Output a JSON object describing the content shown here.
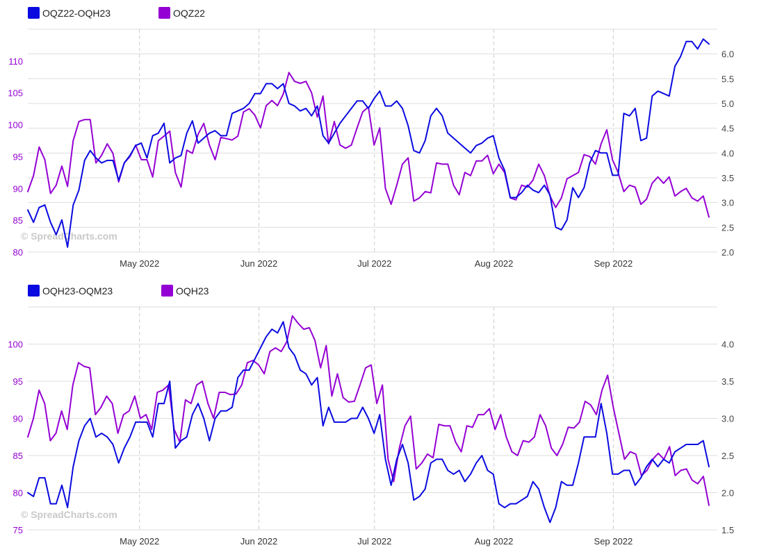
{
  "colors": {
    "spread": "#0a0ae0",
    "outright": "#9400d3",
    "left_axis_text": "#9400d3",
    "right_axis_text": "#444444",
    "grid": "#dddddd",
    "watermark": "#c9c9c9"
  },
  "watermark": "© SpreadCharts.com",
  "chart_data": [
    {
      "type": "line",
      "x_tick_labels": [
        "May 2022",
        "Jun 2022",
        "Jul 2022",
        "Aug 2022",
        "Sep 2022"
      ],
      "x_ticks": [
        "2022-05-01",
        "2022-06-01",
        "2022-07-01",
        "2022-08-01",
        "2022-09-01"
      ],
      "x_range": [
        "2022-04-02",
        "2022-09-28"
      ],
      "left_axis": {
        "ylim": [
          80,
          115
        ],
        "ticks": [
          80,
          85,
          90,
          95,
          100,
          105,
          110
        ]
      },
      "right_axis": {
        "ylim": [
          2.0,
          6.5
        ],
        "ticks": [
          "2.0",
          "2.5",
          "3.0",
          "3.5",
          "4.0",
          "4.5",
          "5.0",
          "5.5",
          "6.0"
        ]
      },
      "series": [
        {
          "name": "OQZ22-OQH23",
          "axis": "right",
          "color": "#0a0ae0",
          "values": [
            2.85,
            2.6,
            2.9,
            2.95,
            2.6,
            2.35,
            2.65,
            2.1,
            2.95,
            3.25,
            3.85,
            4.05,
            3.9,
            3.8,
            3.85,
            3.85,
            3.45,
            3.8,
            3.95,
            4.15,
            4.2,
            3.9,
            4.35,
            4.4,
            4.6,
            3.8,
            3.9,
            3.95,
            4.4,
            4.65,
            4.2,
            4.3,
            4.4,
            4.45,
            4.35,
            4.35,
            4.8,
            4.85,
            4.9,
            5.0,
            5.2,
            5.2,
            5.4,
            5.4,
            5.3,
            5.4,
            5.0,
            4.95,
            4.85,
            4.9,
            4.75,
            4.95,
            4.35,
            4.2,
            4.4,
            4.6,
            4.75,
            4.9,
            5.05,
            5.05,
            4.9,
            5.1,
            5.25,
            4.95,
            4.95,
            5.05,
            4.9,
            4.55,
            4.05,
            4.0,
            4.25,
            4.75,
            4.9,
            4.75,
            4.4,
            4.3,
            4.2,
            4.1,
            4.0,
            4.15,
            4.2,
            4.3,
            4.35,
            3.9,
            3.65,
            3.1,
            3.1,
            3.2,
            3.35,
            3.25,
            3.2,
            3.35,
            3.15,
            2.5,
            2.45,
            2.65,
            3.3,
            3.1,
            3.3,
            3.8,
            4.05,
            4.0,
            4.0,
            3.55,
            3.55,
            4.8,
            4.75,
            4.9,
            4.25,
            4.3,
            5.15,
            5.25,
            5.2,
            5.15,
            5.75,
            5.95,
            6.25,
            6.25,
            6.1,
            6.3,
            6.2
          ]
        },
        {
          "name": "OQZ22",
          "axis": "left",
          "color": "#9400d3",
          "values": [
            89.5,
            92.0,
            96.5,
            94.5,
            89.2,
            90.5,
            93.5,
            90.3,
            97.5,
            100.5,
            100.8,
            100.8,
            94.0,
            95.2,
            97.0,
            95.5,
            91.0,
            94.0,
            95.0,
            96.8,
            94.5,
            94.5,
            91.8,
            97.5,
            98.2,
            99.0,
            92.5,
            90.2,
            96.0,
            95.5,
            98.5,
            100.2,
            96.8,
            94.5,
            98.0,
            97.8,
            97.6,
            98.2,
            102.0,
            102.5,
            101.5,
            99.5,
            103.0,
            103.8,
            103.0,
            104.8,
            108.2,
            106.8,
            106.5,
            106.8,
            105.0,
            101.2,
            104.5,
            97.0,
            100.5,
            96.8,
            96.3,
            96.8,
            99.5,
            102.0,
            102.8,
            96.8,
            99.5,
            90.0,
            87.5,
            90.5,
            93.8,
            94.8,
            88.0,
            88.5,
            89.5,
            89.3,
            94.0,
            93.8,
            93.8,
            90.5,
            89.0,
            92.5,
            92.0,
            94.3,
            94.3,
            95.2,
            92.3,
            93.8,
            92.5,
            88.5,
            88.2,
            90.5,
            90.2,
            91.3,
            93.8,
            92.0,
            88.8,
            87.0,
            88.5,
            91.5,
            92.0,
            92.5,
            95.3,
            95.0,
            93.8,
            97.0,
            99.2,
            94.5,
            92.5,
            89.5,
            90.5,
            90.2,
            87.5,
            88.3,
            90.8,
            91.8,
            90.8,
            91.8,
            88.8,
            89.5,
            90.0,
            88.5,
            88.0,
            88.8,
            85.5
          ]
        }
      ]
    },
    {
      "type": "line",
      "x_tick_labels": [
        "May 2022",
        "Jun 2022",
        "Jul 2022",
        "Aug 2022",
        "Sep 2022"
      ],
      "x_ticks": [
        "2022-05-01",
        "2022-06-01",
        "2022-07-01",
        "2022-08-01",
        "2022-09-01"
      ],
      "x_range": [
        "2022-04-02",
        "2022-09-28"
      ],
      "left_axis": {
        "ylim": [
          75,
          105
        ],
        "ticks": [
          75,
          80,
          85,
          90,
          95,
          100
        ]
      },
      "right_axis": {
        "ylim": [
          1.5,
          4.5
        ],
        "ticks": [
          "1.5",
          "2.0",
          "2.5",
          "3.0",
          "3.5",
          "4.0"
        ]
      },
      "series": [
        {
          "name": "OQH23-OQM23",
          "axis": "right",
          "color": "#0a0ae0",
          "values": [
            2.0,
            1.95,
            2.2,
            2.2,
            1.85,
            1.85,
            2.1,
            1.8,
            2.35,
            2.7,
            2.9,
            3.0,
            2.75,
            2.8,
            2.75,
            2.65,
            2.4,
            2.6,
            2.75,
            2.95,
            2.95,
            2.95,
            2.75,
            3.2,
            3.2,
            3.5,
            2.6,
            2.7,
            2.75,
            3.05,
            3.2,
            3.0,
            2.7,
            3.0,
            3.1,
            3.1,
            3.15,
            3.55,
            3.65,
            3.65,
            3.8,
            3.95,
            4.1,
            4.2,
            4.15,
            4.3,
            3.95,
            3.85,
            3.65,
            3.6,
            3.45,
            3.55,
            2.9,
            3.15,
            2.95,
            2.95,
            2.95,
            3.0,
            3.0,
            3.15,
            3.0,
            2.8,
            3.05,
            2.45,
            2.1,
            2.45,
            2.65,
            2.4,
            1.9,
            1.95,
            2.05,
            2.4,
            2.45,
            2.45,
            2.3,
            2.25,
            2.3,
            2.15,
            2.25,
            2.4,
            2.5,
            2.3,
            2.25,
            1.85,
            1.8,
            1.85,
            1.85,
            1.9,
            1.95,
            2.15,
            2.05,
            1.8,
            1.6,
            1.8,
            2.15,
            2.1,
            2.1,
            2.4,
            2.75,
            2.75,
            2.75,
            3.2,
            2.8,
            2.25,
            2.25,
            2.3,
            2.3,
            2.1,
            2.2,
            2.35,
            2.45,
            2.35,
            2.45,
            2.4,
            2.55,
            2.6,
            2.65,
            2.65,
            2.65,
            2.7,
            2.35
          ]
        },
        {
          "name": "OQH23",
          "axis": "left",
          "color": "#9400d3",
          "values": [
            87.5,
            90.0,
            93.8,
            92.0,
            87.0,
            88.0,
            91.0,
            88.5,
            94.5,
            97.5,
            97.0,
            96.8,
            90.5,
            91.5,
            93.0,
            92.0,
            88.0,
            90.5,
            91.0,
            93.0,
            90.0,
            90.5,
            88.5,
            93.5,
            93.8,
            94.5,
            88.5,
            86.8,
            92.5,
            92.0,
            94.5,
            95.0,
            92.0,
            90.0,
            93.5,
            93.5,
            93.2,
            93.3,
            94.5,
            97.5,
            97.8,
            97.2,
            96.0,
            99.0,
            99.5,
            99.0,
            100.3,
            103.8,
            102.8,
            102.0,
            102.2,
            100.5,
            96.8,
            99.8,
            93.0,
            96.0,
            92.8,
            92.2,
            92.3,
            94.5,
            96.8,
            97.2,
            92.0,
            94.5,
            84.5,
            81.5,
            86.0,
            89.0,
            90.3,
            83.2,
            84.0,
            85.2,
            84.7,
            89.2,
            89.0,
            89.0,
            86.8,
            85.5,
            89.0,
            88.8,
            90.5,
            90.5,
            91.3,
            88.5,
            90.5,
            87.5,
            85.5,
            85.0,
            87.0,
            86.8,
            87.5,
            90.5,
            89.0,
            86.0,
            85.0,
            86.5,
            88.8,
            88.7,
            89.5,
            92.3,
            91.8,
            90.5,
            93.8,
            95.8,
            91.5,
            88.0,
            84.5,
            85.5,
            85.2,
            82.3,
            83.0,
            84.5,
            85.3,
            84.5,
            86.2,
            82.3,
            83.0,
            83.2,
            81.7,
            81.2,
            82.2,
            78.3
          ]
        }
      ]
    }
  ]
}
